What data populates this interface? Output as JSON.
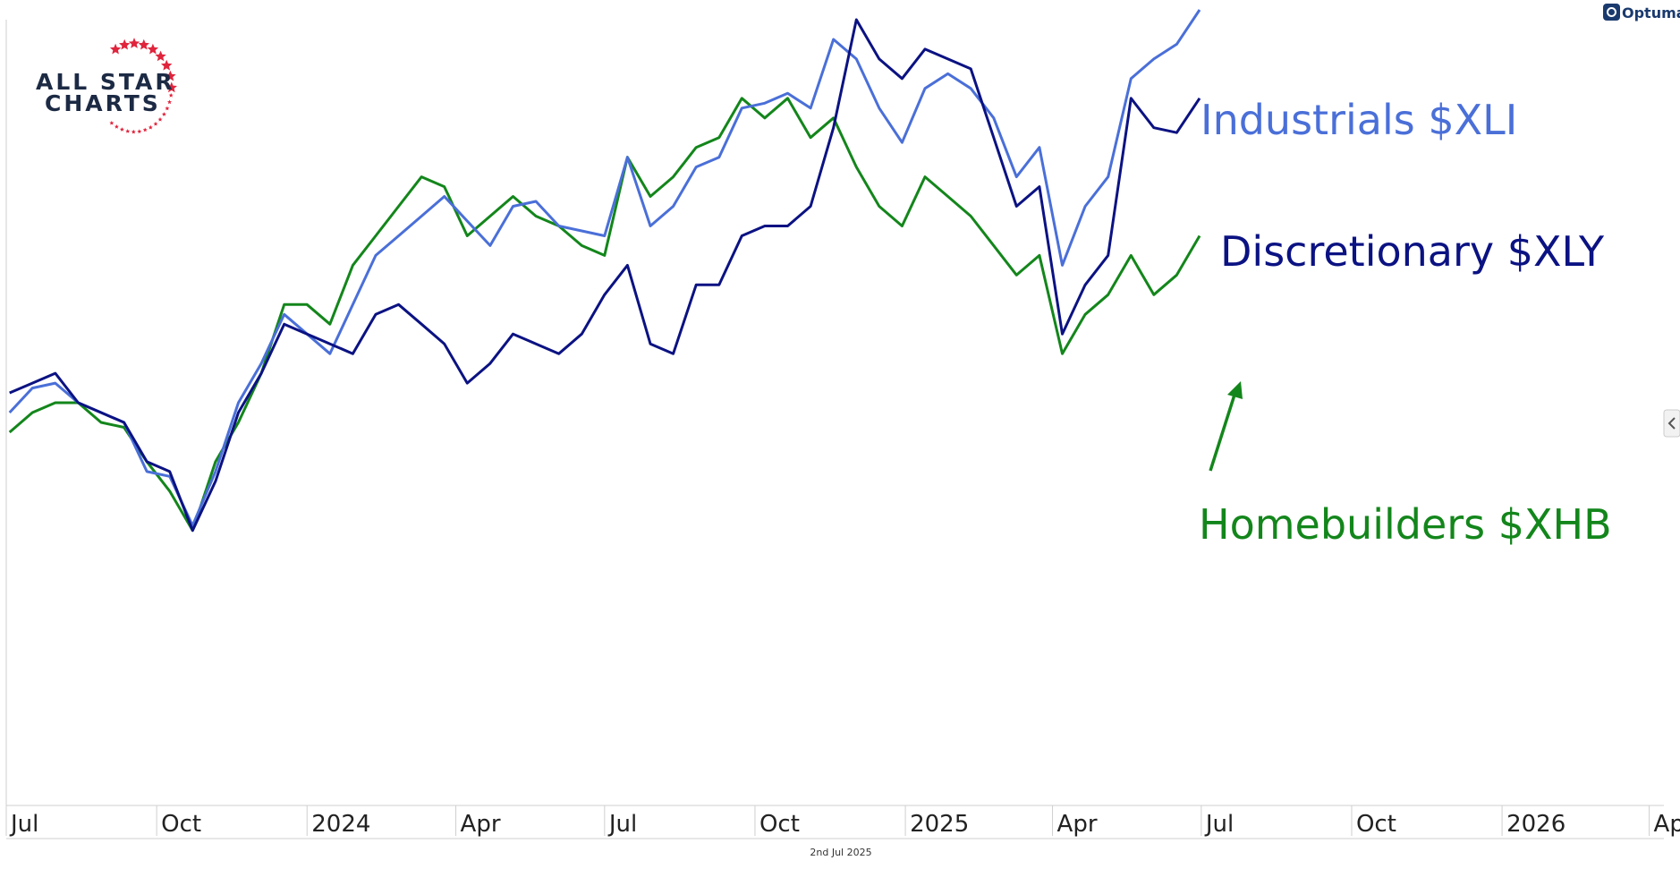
{
  "brand": {
    "logo_line1": "ALL STAR",
    "logo_line2": "CHARTS",
    "logo_star_color": "#e0243c",
    "logo_text_color": "#1c2a44",
    "watermark": "Optuma"
  },
  "caption": {
    "date": "2nd Jul 2025"
  },
  "side_tab": {
    "icon": "chevron-left-icon"
  },
  "chart_data": {
    "type": "line",
    "title": "",
    "xlabel": "",
    "ylabel": "",
    "grid": false,
    "legend": "inline-right",
    "x_axis": {
      "range": [
        "2023-07-01",
        "2026-04-10"
      ],
      "ticks": [
        {
          "label": "Jul",
          "date": "2023-07-01"
        },
        {
          "label": "Oct",
          "date": "2023-10-01"
        },
        {
          "label": "2024",
          "date": "2024-01-01"
        },
        {
          "label": "Apr",
          "date": "2024-04-01"
        },
        {
          "label": "Jul",
          "date": "2024-07-01"
        },
        {
          "label": "Oct",
          "date": "2024-10-01"
        },
        {
          "label": "2025",
          "date": "2025-01-01"
        },
        {
          "label": "Apr",
          "date": "2025-04-01"
        },
        {
          "label": "Jul",
          "date": "2025-07-01"
        },
        {
          "label": "Oct",
          "date": "2025-10-01"
        },
        {
          "label": "2026",
          "date": "2026-01-01"
        },
        {
          "label": "Ap",
          "date": "2026-04-01"
        }
      ]
    },
    "y_axis": {
      "range": [
        60,
        140
      ],
      "shown": false
    },
    "series": [
      {
        "name": "Industrials $XLI",
        "color": "#4a6fd8",
        "points": [
          [
            "2023-07-03",
            100
          ],
          [
            "2023-07-17",
            102.5
          ],
          [
            "2023-07-31",
            103
          ],
          [
            "2023-08-14",
            101
          ],
          [
            "2023-08-28",
            100
          ],
          [
            "2023-09-11",
            99
          ],
          [
            "2023-09-25",
            94
          ],
          [
            "2023-10-09",
            93.5
          ],
          [
            "2023-10-23",
            88.5
          ],
          [
            "2023-11-06",
            94
          ],
          [
            "2023-11-20",
            101
          ],
          [
            "2023-12-04",
            105
          ],
          [
            "2023-12-18",
            110
          ],
          [
            "2024-01-01",
            108
          ],
          [
            "2024-01-15",
            106
          ],
          [
            "2024-01-29",
            111
          ],
          [
            "2024-02-12",
            116
          ],
          [
            "2024-02-26",
            118
          ],
          [
            "2024-03-11",
            120
          ],
          [
            "2024-03-25",
            122
          ],
          [
            "2024-04-08",
            119.5
          ],
          [
            "2024-04-22",
            117
          ],
          [
            "2024-05-06",
            121
          ],
          [
            "2024-05-20",
            121.5
          ],
          [
            "2024-06-03",
            119
          ],
          [
            "2024-06-17",
            118.5
          ],
          [
            "2024-07-01",
            118
          ],
          [
            "2024-07-15",
            126
          ],
          [
            "2024-07-29",
            119
          ],
          [
            "2024-08-12",
            121
          ],
          [
            "2024-08-26",
            125
          ],
          [
            "2024-09-09",
            126
          ],
          [
            "2024-09-23",
            131
          ],
          [
            "2024-10-07",
            131.5
          ],
          [
            "2024-10-21",
            132.5
          ],
          [
            "2024-11-04",
            131
          ],
          [
            "2024-11-18",
            138
          ],
          [
            "2024-12-02",
            136
          ],
          [
            "2024-12-16",
            131
          ],
          [
            "2024-12-30",
            127.5
          ],
          [
            "2025-01-13",
            133
          ],
          [
            "2025-01-27",
            134.5
          ],
          [
            "2025-02-10",
            133
          ],
          [
            "2025-02-24",
            130
          ],
          [
            "2025-03-10",
            124
          ],
          [
            "2025-03-24",
            127
          ],
          [
            "2025-04-07",
            115
          ],
          [
            "2025-04-21",
            121
          ],
          [
            "2025-05-05",
            124
          ],
          [
            "2025-05-19",
            134
          ],
          [
            "2025-06-02",
            136
          ],
          [
            "2025-06-16",
            137.5
          ],
          [
            "2025-06-30",
            141
          ]
        ]
      },
      {
        "name": "Discretionary $XLY",
        "color": "#0b1282",
        "points": [
          [
            "2023-07-03",
            102
          ],
          [
            "2023-07-17",
            103
          ],
          [
            "2023-07-31",
            104
          ],
          [
            "2023-08-14",
            101
          ],
          [
            "2023-08-28",
            100
          ],
          [
            "2023-09-11",
            99
          ],
          [
            "2023-09-25",
            95
          ],
          [
            "2023-10-09",
            94
          ],
          [
            "2023-10-23",
            88
          ],
          [
            "2023-11-06",
            93
          ],
          [
            "2023-11-20",
            100
          ],
          [
            "2023-12-04",
            104
          ],
          [
            "2023-12-18",
            109
          ],
          [
            "2024-01-01",
            108
          ],
          [
            "2024-01-15",
            107
          ],
          [
            "2024-01-29",
            106
          ],
          [
            "2024-02-12",
            110
          ],
          [
            "2024-02-26",
            111
          ],
          [
            "2024-03-11",
            109
          ],
          [
            "2024-03-25",
            107
          ],
          [
            "2024-04-08",
            103
          ],
          [
            "2024-04-22",
            105
          ],
          [
            "2024-05-06",
            108
          ],
          [
            "2024-05-20",
            107
          ],
          [
            "2024-06-03",
            106
          ],
          [
            "2024-06-17",
            108
          ],
          [
            "2024-07-01",
            112
          ],
          [
            "2024-07-15",
            115
          ],
          [
            "2024-07-29",
            107
          ],
          [
            "2024-08-12",
            106
          ],
          [
            "2024-08-26",
            113
          ],
          [
            "2024-09-09",
            113
          ],
          [
            "2024-09-23",
            118
          ],
          [
            "2024-10-07",
            119
          ],
          [
            "2024-10-21",
            119
          ],
          [
            "2024-11-04",
            121
          ],
          [
            "2024-11-18",
            129
          ],
          [
            "2024-12-02",
            140
          ],
          [
            "2024-12-16",
            136
          ],
          [
            "2024-12-30",
            134
          ],
          [
            "2025-01-13",
            137
          ],
          [
            "2025-01-27",
            136
          ],
          [
            "2025-02-10",
            135
          ],
          [
            "2025-02-24",
            128
          ],
          [
            "2025-03-10",
            121
          ],
          [
            "2025-03-24",
            123
          ],
          [
            "2025-04-07",
            108
          ],
          [
            "2025-04-21",
            113
          ],
          [
            "2025-05-05",
            116
          ],
          [
            "2025-05-19",
            132
          ],
          [
            "2025-06-02",
            129
          ],
          [
            "2025-06-16",
            128.5
          ],
          [
            "2025-06-30",
            132
          ]
        ]
      },
      {
        "name": "Homebuilders $XHB",
        "color": "#13861b",
        "points": [
          [
            "2023-07-03",
            98
          ],
          [
            "2023-07-17",
            100
          ],
          [
            "2023-07-31",
            101
          ],
          [
            "2023-08-14",
            101
          ],
          [
            "2023-08-28",
            99
          ],
          [
            "2023-09-11",
            98.5
          ],
          [
            "2023-09-25",
            95
          ],
          [
            "2023-10-09",
            92
          ],
          [
            "2023-10-23",
            88
          ],
          [
            "2023-11-06",
            95
          ],
          [
            "2023-11-20",
            99
          ],
          [
            "2023-12-04",
            104
          ],
          [
            "2023-12-18",
            111
          ],
          [
            "2024-01-01",
            111
          ],
          [
            "2024-01-15",
            109
          ],
          [
            "2024-01-29",
            115
          ],
          [
            "2024-02-12",
            118
          ],
          [
            "2024-02-26",
            121
          ],
          [
            "2024-03-11",
            124
          ],
          [
            "2024-03-25",
            123
          ],
          [
            "2024-04-08",
            118
          ],
          [
            "2024-04-22",
            120
          ],
          [
            "2024-05-06",
            122
          ],
          [
            "2024-05-20",
            120
          ],
          [
            "2024-06-03",
            119
          ],
          [
            "2024-06-17",
            117
          ],
          [
            "2024-07-01",
            116
          ],
          [
            "2024-07-15",
            126
          ],
          [
            "2024-07-29",
            122
          ],
          [
            "2024-08-12",
            124
          ],
          [
            "2024-08-26",
            127
          ],
          [
            "2024-09-09",
            128
          ],
          [
            "2024-09-23",
            132
          ],
          [
            "2024-10-07",
            130
          ],
          [
            "2024-10-21",
            132
          ],
          [
            "2024-11-04",
            128
          ],
          [
            "2024-11-18",
            130
          ],
          [
            "2024-12-02",
            125
          ],
          [
            "2024-12-16",
            121
          ],
          [
            "2024-12-30",
            119
          ],
          [
            "2025-01-13",
            124
          ],
          [
            "2025-01-27",
            122
          ],
          [
            "2025-02-10",
            120
          ],
          [
            "2025-02-24",
            117
          ],
          [
            "2025-03-10",
            114
          ],
          [
            "2025-03-24",
            116
          ],
          [
            "2025-04-07",
            106
          ],
          [
            "2025-04-21",
            110
          ],
          [
            "2025-05-05",
            112
          ],
          [
            "2025-05-19",
            116
          ],
          [
            "2025-06-02",
            112
          ],
          [
            "2025-06-16",
            114
          ],
          [
            "2025-06-30",
            118
          ]
        ]
      }
    ],
    "annotations": [
      {
        "type": "arrow",
        "color": "#13861b",
        "direction": "up-right",
        "label": ""
      }
    ]
  }
}
